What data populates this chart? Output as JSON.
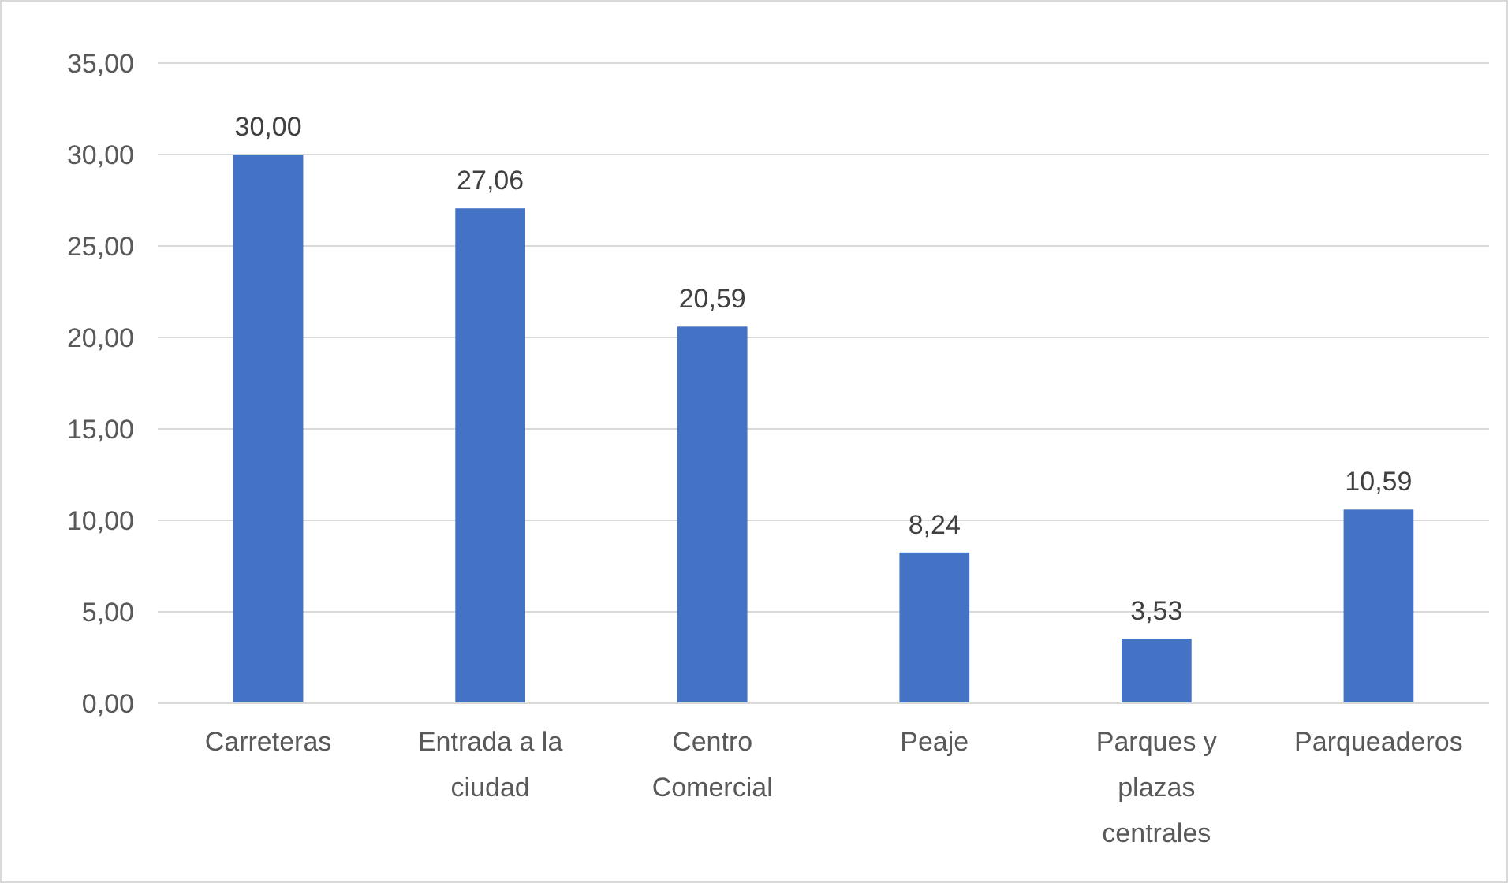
{
  "chart_data": {
    "type": "bar",
    "categories": [
      "Carreteras",
      "Entrada a la ciudad",
      "Centro Comercial",
      "Peaje",
      "Parques y plazas centrales",
      "Parqueaderos"
    ],
    "values": [
      30,
      27.06,
      20.59,
      8.24,
      3.53,
      10.59
    ],
    "value_labels": [
      "30,00",
      "27,06",
      "20,59",
      "8,24",
      "3,53",
      "10,59"
    ],
    "color": "#4472c4",
    "ylim": [
      0,
      35
    ],
    "yticks": [
      {
        "value": 0,
        "label": "0,00"
      },
      {
        "value": 5,
        "label": "5,00"
      },
      {
        "value": 10,
        "label": "10,00"
      },
      {
        "value": 15,
        "label": "15,00"
      },
      {
        "value": 20,
        "label": "20,00"
      },
      {
        "value": 25,
        "label": "25,00"
      },
      {
        "value": 30,
        "label": "30,00"
      },
      {
        "value": 35,
        "label": "35,00"
      }
    ],
    "grid": "y"
  }
}
